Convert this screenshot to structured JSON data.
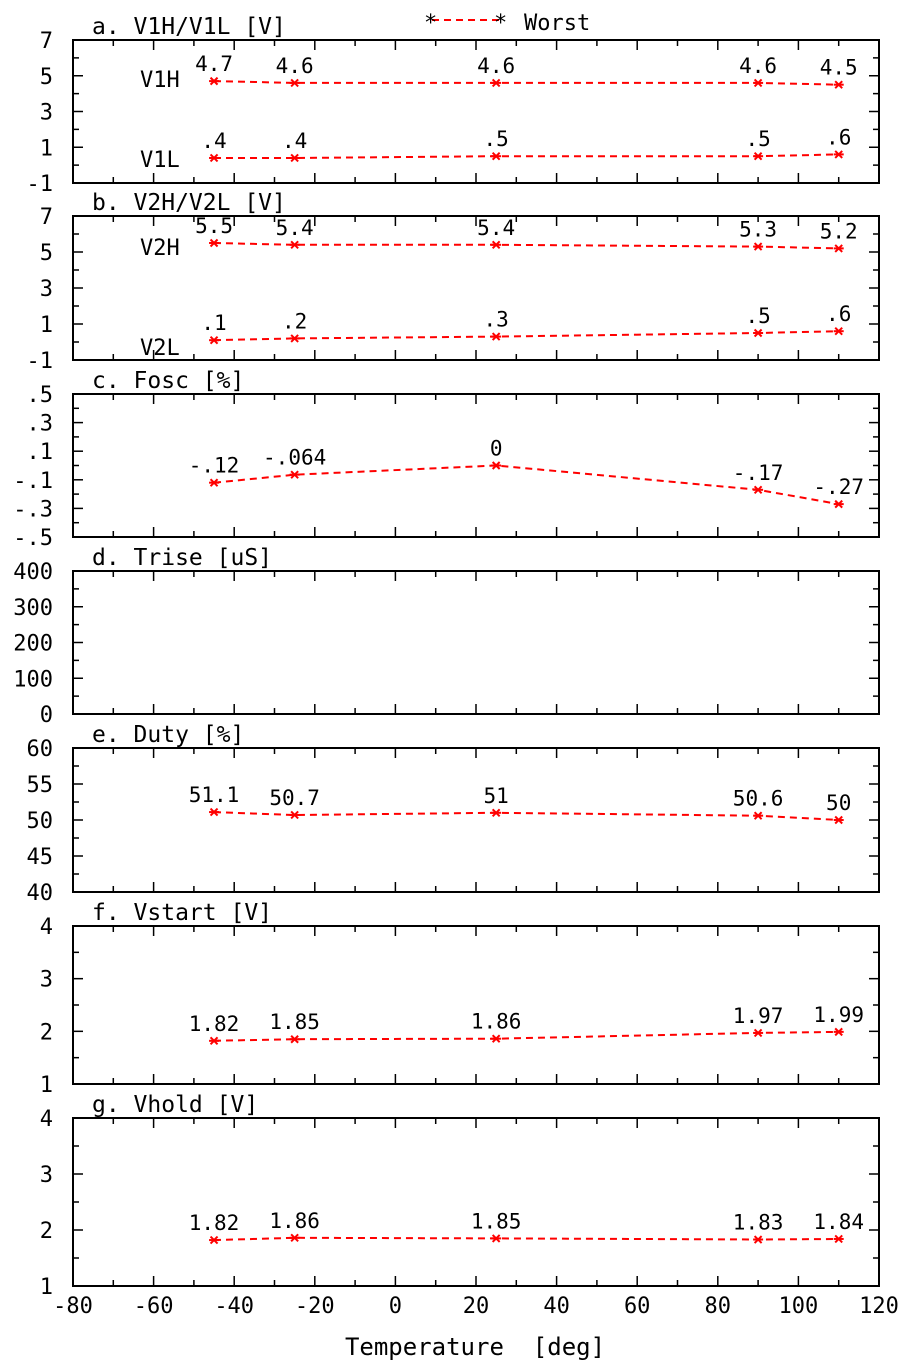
{
  "legend": {
    "label": "Worst",
    "marker_color": "#000000",
    "line_color": "#ff0000"
  },
  "xlabel": "Temperature  [deg]",
  "x_ticks": [
    "-80",
    "-60",
    "-40",
    "-20",
    "0",
    "20",
    "40",
    "60",
    "80",
    "100",
    "120"
  ],
  "colors": {
    "series": "#ff0000",
    "axes": "#000000"
  },
  "chart_data": [
    {
      "type": "line",
      "title": "a. V1H/V1L  [V]",
      "xlim": [
        -80,
        120
      ],
      "ylim": [
        -1,
        7
      ],
      "y_ticks": [
        "7",
        "5",
        "3",
        "1",
        "-1"
      ],
      "x": [
        -45,
        -25,
        25,
        90,
        110
      ],
      "series": [
        {
          "name": "V1H",
          "values": [
            4.7,
            4.6,
            4.6,
            4.6,
            4.5
          ],
          "labels": [
            "4.7",
            "4.6",
            "4.6",
            "4.6",
            "4.5"
          ]
        },
        {
          "name": "V1L",
          "values": [
            0.4,
            0.4,
            0.5,
            0.5,
            0.6
          ],
          "labels": [
            ".4",
            ".4",
            ".5",
            ".5",
            ".6"
          ]
        }
      ]
    },
    {
      "type": "line",
      "title": "b. V2H/V2L  [V]",
      "xlim": [
        -80,
        120
      ],
      "ylim": [
        -1,
        7
      ],
      "y_ticks": [
        "7",
        "5",
        "3",
        "1",
        "-1"
      ],
      "x": [
        -45,
        -25,
        25,
        90,
        110
      ],
      "series": [
        {
          "name": "V2H",
          "values": [
            5.5,
            5.4,
            5.4,
            5.3,
            5.2
          ],
          "labels": [
            "5.5",
            "5.4",
            "5.4",
            "5.3",
            "5.2"
          ]
        },
        {
          "name": "V2L",
          "values": [
            0.1,
            0.2,
            0.3,
            0.5,
            0.6
          ],
          "labels": [
            ".1",
            ".2",
            ".3",
            ".5",
            ".6"
          ]
        }
      ]
    },
    {
      "type": "line",
      "title": "c. Fosc  [%]",
      "xlim": [
        -80,
        120
      ],
      "ylim": [
        -0.5,
        0.5
      ],
      "y_ticks": [
        ".5",
        ".3",
        ".1",
        "-.1",
        "-.3",
        "-.5"
      ],
      "x": [
        -45,
        -25,
        25,
        90,
        110
      ],
      "series": [
        {
          "name": "",
          "values": [
            -0.12,
            -0.064,
            0,
            -0.17,
            -0.27
          ],
          "labels": [
            "-.12",
            "-.064",
            "0",
            "-.17",
            "-.27"
          ]
        }
      ]
    },
    {
      "type": "line",
      "title": "d. Trise  [uS]",
      "xlim": [
        -80,
        120
      ],
      "ylim": [
        0,
        400
      ],
      "y_ticks": [
        "400",
        "300",
        "200",
        "100",
        "0"
      ],
      "x": [],
      "series": []
    },
    {
      "type": "line",
      "title": "e. Duty  [%]",
      "xlim": [
        -80,
        120
      ],
      "ylim": [
        40,
        60
      ],
      "y_ticks": [
        "60",
        "55",
        "50",
        "45",
        "40"
      ],
      "x": [
        -45,
        -25,
        25,
        90,
        110
      ],
      "series": [
        {
          "name": "",
          "values": [
            51.1,
            50.7,
            51,
            50.6,
            50
          ],
          "labels": [
            "51.1",
            "50.7",
            "51",
            "50.6",
            "50"
          ]
        }
      ]
    },
    {
      "type": "line",
      "title": "f. Vstart  [V]",
      "xlim": [
        -80,
        120
      ],
      "ylim": [
        1,
        4
      ],
      "y_ticks": [
        "4",
        "3",
        "2",
        "1"
      ],
      "x": [
        -45,
        -25,
        25,
        90,
        110
      ],
      "series": [
        {
          "name": "",
          "values": [
            1.82,
            1.85,
            1.86,
            1.97,
            1.99
          ],
          "labels": [
            "1.82",
            "1.85",
            "1.86",
            "1.97",
            "1.99"
          ]
        }
      ]
    },
    {
      "type": "line",
      "title": "g. Vhold  [V]",
      "xlim": [
        -80,
        120
      ],
      "ylim": [
        1,
        4
      ],
      "y_ticks": [
        "4",
        "3",
        "2",
        "1"
      ],
      "x": [
        -45,
        -25,
        25,
        90,
        110
      ],
      "series": [
        {
          "name": "",
          "values": [
            1.82,
            1.86,
            1.85,
            1.83,
            1.84
          ],
          "labels": [
            "1.82",
            "1.86",
            "1.85",
            "1.83",
            "1.84"
          ]
        }
      ]
    }
  ]
}
